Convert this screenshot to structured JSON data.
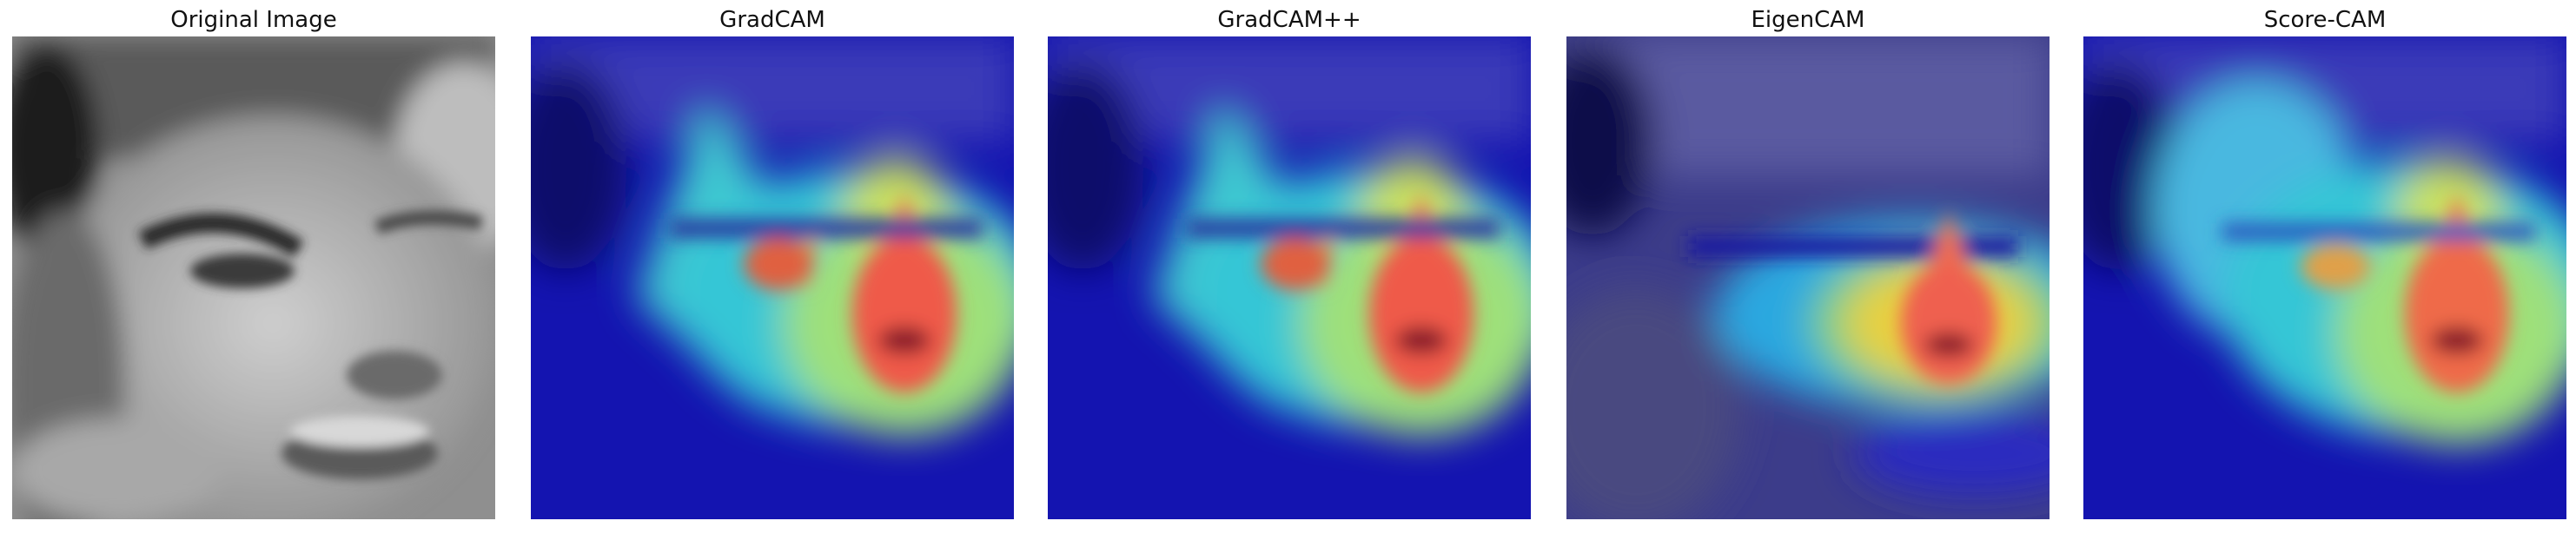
{
  "panels": [
    {
      "title": "Original Image",
      "kind": "gray"
    },
    {
      "title": "GradCAM",
      "kind": "gradcam"
    },
    {
      "title": "GradCAM++",
      "kind": "gradcampp"
    },
    {
      "title": "EigenCAM",
      "kind": "eigencam"
    },
    {
      "title": "Score-CAM",
      "kind": "scorecam"
    }
  ],
  "colors": {
    "background": "#ffffff",
    "title_text": "#111111",
    "jet_low": "#00007f",
    "jet_mid": "#00ffff",
    "jet_high": "#ff0000"
  }
}
